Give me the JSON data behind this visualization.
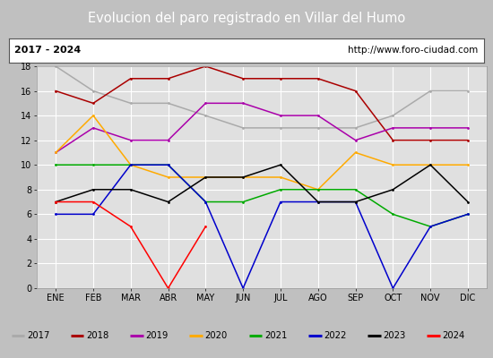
{
  "title": "Evolucion del paro registrado en Villar del Humo",
  "subtitle_left": "2017 - 2024",
  "subtitle_right": "http://www.foro-ciudad.com",
  "months": [
    "ENE",
    "FEB",
    "MAR",
    "ABR",
    "MAY",
    "JUN",
    "JUL",
    "AGO",
    "SEP",
    "OCT",
    "NOV",
    "DIC"
  ],
  "ylim": [
    0,
    18
  ],
  "yticks": [
    0,
    2,
    4,
    6,
    8,
    10,
    12,
    14,
    16,
    18
  ],
  "series": {
    "2017": {
      "color": "#aaaaaa",
      "values": [
        18,
        16,
        15,
        15,
        14,
        13,
        13,
        13,
        13,
        14,
        16,
        16
      ]
    },
    "2018": {
      "color": "#aa0000",
      "values": [
        16,
        15,
        17,
        17,
        18,
        17,
        17,
        17,
        16,
        12,
        12,
        12
      ]
    },
    "2019": {
      "color": "#aa00aa",
      "values": [
        11,
        13,
        12,
        12,
        15,
        15,
        14,
        14,
        12,
        13,
        13,
        13
      ]
    },
    "2020": {
      "color": "#ffaa00",
      "values": [
        11,
        14,
        10,
        9,
        9,
        9,
        9,
        8,
        11,
        10,
        10,
        10
      ]
    },
    "2021": {
      "color": "#00aa00",
      "values": [
        10,
        10,
        10,
        10,
        7,
        7,
        8,
        8,
        8,
        6,
        5,
        6
      ]
    },
    "2022": {
      "color": "#0000cc",
      "values": [
        6,
        6,
        10,
        10,
        7,
        0,
        7,
        7,
        7,
        0,
        5,
        6
      ]
    },
    "2023": {
      "color": "#000000",
      "values": [
        7,
        8,
        8,
        7,
        9,
        9,
        10,
        7,
        7,
        8,
        10,
        7
      ]
    },
    "2024": {
      "color": "#ff0000",
      "values": [
        7,
        7,
        5,
        0,
        5,
        null,
        null,
        null,
        null,
        null,
        null,
        null
      ]
    }
  },
  "title_bg_color": "#4472c4",
  "title_font_color": "#ffffff",
  "subtitle_bg_color": "#ffffff",
  "plot_bg_color": "#e0e0e0",
  "grid_color": "#ffffff",
  "border_color": "#000000",
  "fig_bg_color": "#c0c0c0"
}
